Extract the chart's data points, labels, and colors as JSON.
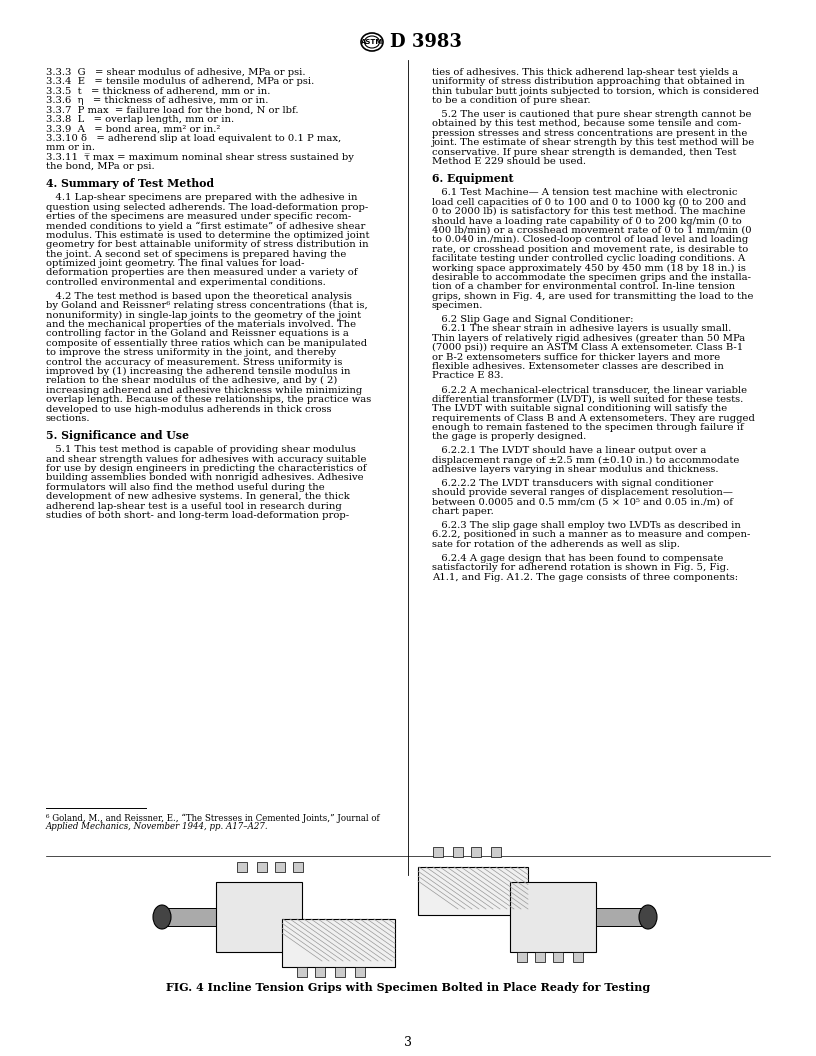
{
  "page_width": 8.16,
  "page_height": 10.56,
  "dpi": 100,
  "bg_color": "#ffffff",
  "header_title": "D 3983",
  "page_number": "3",
  "font_size_body": 7.2,
  "font_size_section": 7.8,
  "font_size_footnote": 6.2,
  "left_column_text": [
    {
      "type": "body",
      "text": "3.3.3  G   = shear modulus of adhesive, MPa or psi."
    },
    {
      "type": "body",
      "text": "3.3.4  E   = tensile modulus of adherend, MPa or psi."
    },
    {
      "type": "body",
      "text": "3.3.5  t   = thickness of adherend, mm or in."
    },
    {
      "type": "body",
      "text": "3.3.6  η   = thickness of adhesive, mm or in."
    },
    {
      "type": "body",
      "text": "3.3.7  P max  = failure load for the bond, N or lbf."
    },
    {
      "type": "body",
      "text": "3.3.8  L   = overlap length, mm or in."
    },
    {
      "type": "body",
      "text": "3.3.9  A   = bond area, mm² or in.²"
    },
    {
      "type": "body",
      "text": "3.3.10 δ   = adherend slip at load equivalent to 0.1 P max,"
    },
    {
      "type": "body",
      "text": "mm or in."
    },
    {
      "type": "body",
      "text": "3.3.11  τ̅ max = maximum nominal shear stress sustained by"
    },
    {
      "type": "body",
      "text": "the bond, MPa or psi."
    },
    {
      "type": "blank"
    },
    {
      "type": "section",
      "text": "4. Summary of Test Method"
    },
    {
      "type": "blank"
    },
    {
      "type": "body",
      "text": "   4.1 Lap-shear specimens are prepared with the adhesive in"
    },
    {
      "type": "body",
      "text": "question using selected adherends. The load-deformation prop-"
    },
    {
      "type": "body",
      "text": "erties of the specimens are measured under specific recom-"
    },
    {
      "type": "body",
      "text": "mended conditions to yield a “first estimate” of adhesive shear"
    },
    {
      "type": "body",
      "text": "modulus. This estimate is used to determine the optimized joint"
    },
    {
      "type": "body",
      "text": "geometry for best attainable uniformity of stress distribution in"
    },
    {
      "type": "body",
      "text": "the joint. A second set of specimens is prepared having the"
    },
    {
      "type": "body",
      "text": "optimized joint geometry. The final values for load-"
    },
    {
      "type": "body",
      "text": "deformation properties are then measured under a variety of"
    },
    {
      "type": "body",
      "text": "controlled environmental and experimental conditions."
    },
    {
      "type": "blank"
    },
    {
      "type": "body",
      "text": "   4.2 The test method is based upon the theoretical analysis"
    },
    {
      "type": "body",
      "text": "by Goland and Reissner⁶ relating stress concentrations (that is,"
    },
    {
      "type": "body",
      "text": "nonuniformity) in single-lap joints to the geometry of the joint"
    },
    {
      "type": "body",
      "text": "and the mechanical properties of the materials involved. The"
    },
    {
      "type": "body",
      "text": "controlling factor in the Goland and Reissner equations is a"
    },
    {
      "type": "body",
      "text": "composite of essentially three ratios which can be manipulated"
    },
    {
      "type": "body",
      "text": "to improve the stress uniformity in the joint, and thereby"
    },
    {
      "type": "body",
      "text": "control the accuracy of measurement. Stress uniformity is"
    },
    {
      "type": "body",
      "text": "improved by (1) increasing the adherend tensile modulus in"
    },
    {
      "type": "body",
      "text": "relation to the shear modulus of the adhesive, and by ( 2)"
    },
    {
      "type": "body",
      "text": "increasing adherend and adhesive thickness while minimizing"
    },
    {
      "type": "body",
      "text": "overlap length. Because of these relationships, the practice was"
    },
    {
      "type": "body",
      "text": "developed to use high-modulus adherends in thick cross"
    },
    {
      "type": "body",
      "text": "sections."
    },
    {
      "type": "blank"
    },
    {
      "type": "section",
      "text": "5. Significance and Use"
    },
    {
      "type": "blank"
    },
    {
      "type": "body",
      "text": "   5.1 This test method is capable of providing shear modulus"
    },
    {
      "type": "body",
      "text": "and shear strength values for adhesives with accuracy suitable"
    },
    {
      "type": "body",
      "text": "for use by design engineers in predicting the characteristics of"
    },
    {
      "type": "body",
      "text": "building assemblies bonded with nonrigid adhesives. Adhesive"
    },
    {
      "type": "body",
      "text": "formulators will also find the method useful during the"
    },
    {
      "type": "body",
      "text": "development of new adhesive systems. In general, the thick"
    },
    {
      "type": "body",
      "text": "adherend lap-shear test is a useful tool in research during"
    },
    {
      "type": "body",
      "text": "studies of both short- and long-term load-deformation prop-"
    }
  ],
  "left_footnote_text": [
    {
      "text": "⁶ Goland, M., and Reissner, E., “The Stresses in Cemented Joints,” Journal of"
    },
    {
      "text": "Applied Mechanics, November 1944, pp. A17–A27.",
      "italic": true
    }
  ],
  "right_column_text": [
    {
      "type": "body",
      "text": "ties of adhesives. This thick adherend lap-shear test yields a"
    },
    {
      "type": "body",
      "text": "uniformity of stress distribution approaching that obtained in"
    },
    {
      "type": "body",
      "text": "thin tubular butt joints subjected to torsion, which is considered"
    },
    {
      "type": "body",
      "text": "to be a condition of pure shear."
    },
    {
      "type": "blank"
    },
    {
      "type": "body",
      "text": "   5.2 The user is cautioned that pure shear strength cannot be"
    },
    {
      "type": "body",
      "text": "obtained by this test method, because some tensile and com-"
    },
    {
      "type": "body",
      "text": "pression stresses and stress concentrations are present in the"
    },
    {
      "type": "body",
      "text": "joint. The estimate of shear strength by this test method will be"
    },
    {
      "type": "body",
      "text": "conservative. If pure shear strength is demanded, then Test"
    },
    {
      "type": "body",
      "text": "Method E 229 should be used."
    },
    {
      "type": "blank"
    },
    {
      "type": "section",
      "text": "6. Equipment"
    },
    {
      "type": "blank"
    },
    {
      "type": "body",
      "text": "   6.1 Test Machine— A tension test machine with electronic"
    },
    {
      "type": "body",
      "text": "load cell capacities of 0 to 100 and 0 to 1000 kg (0 to 200 and"
    },
    {
      "type": "body",
      "text": "0 to 2000 lb) is satisfactory for this test method. The machine"
    },
    {
      "type": "body",
      "text": "should have a loading rate capability of 0 to 200 kg/min (0 to"
    },
    {
      "type": "body",
      "text": "400 lb/min) or a crosshead movement rate of 0 to 1 mm/min (0"
    },
    {
      "type": "body",
      "text": "to 0.040 in./min). Closed-loop control of load level and loading"
    },
    {
      "type": "body",
      "text": "rate, or crosshead position and movement rate, is desirable to"
    },
    {
      "type": "body",
      "text": "facilitate testing under controlled cyclic loading conditions. A"
    },
    {
      "type": "body",
      "text": "working space approximately 450 by 450 mm (18 by 18 in.) is"
    },
    {
      "type": "body",
      "text": "desirable to accommodate the specimen grips and the installa-"
    },
    {
      "type": "body",
      "text": "tion of a chamber for environmental control. In-line tension"
    },
    {
      "type": "body",
      "text": "grips, shown in Fig. 4, are used for transmitting the load to the"
    },
    {
      "type": "body",
      "text": "specimen."
    },
    {
      "type": "blank"
    },
    {
      "type": "body",
      "text": "   6.2 Slip Gage and Signal Conditioner:"
    },
    {
      "type": "body",
      "text": "   6.2.1 The shear strain in adhesive layers is usually small."
    },
    {
      "type": "body",
      "text": "Thin layers of relatively rigid adhesives (greater than 50 MPa"
    },
    {
      "type": "body",
      "text": "(7000 psi)) require an ASTM Class A extensometer. Class B-1"
    },
    {
      "type": "body",
      "text": "or B-2 extensometers suffice for thicker layers and more"
    },
    {
      "type": "body",
      "text": "flexible adhesives. Extensometer classes are described in"
    },
    {
      "type": "body",
      "text": "Practice E 83."
    },
    {
      "type": "blank"
    },
    {
      "type": "body",
      "text": "   6.2.2 A mechanical-electrical transducer, the linear variable"
    },
    {
      "type": "body",
      "text": "differential transformer (LVDT), is well suited for these tests."
    },
    {
      "type": "body",
      "text": "The LVDT with suitable signal conditioning will satisfy the"
    },
    {
      "type": "body",
      "text": "requirements of Class B and A extensometers. They are rugged"
    },
    {
      "type": "body",
      "text": "enough to remain fastened to the specimen through failure if"
    },
    {
      "type": "body",
      "text": "the gage is properly designed."
    },
    {
      "type": "blank"
    },
    {
      "type": "body",
      "text": "   6.2.2.1 The LVDT should have a linear output over a"
    },
    {
      "type": "body",
      "text": "displacement range of ±2.5 mm (±0.10 in.) to accommodate"
    },
    {
      "type": "body",
      "text": "adhesive layers varying in shear modulus and thickness."
    },
    {
      "type": "blank"
    },
    {
      "type": "body",
      "text": "   6.2.2.2 The LVDT transducers with signal conditioner"
    },
    {
      "type": "body",
      "text": "should provide several ranges of displacement resolution—"
    },
    {
      "type": "body",
      "text": "between 0.0005 and 0.5 mm/cm (5 × 10⁵ and 0.05 in./m) of"
    },
    {
      "type": "body",
      "text": "chart paper."
    },
    {
      "type": "blank"
    },
    {
      "type": "body",
      "text": "   6.2.3 The slip gage shall employ two LVDTs as described in"
    },
    {
      "type": "body",
      "text": "6.2.2, positioned in such a manner as to measure and compen-"
    },
    {
      "type": "body",
      "text": "sate for rotation of the adherends as well as slip."
    },
    {
      "type": "blank"
    },
    {
      "type": "body",
      "text": "   6.2.4 A gage design that has been found to compensate"
    },
    {
      "type": "body",
      "text": "satisfactorily for adherend rotation is shown in Fig. 5, Fig."
    },
    {
      "type": "body",
      "text": "A1.1, and Fig. A1.2. The gage consists of three components:"
    }
  ],
  "figure_caption": "FIG. 4 Incline Tension Grips with Specimen Bolted in Place Ready for Testing"
}
